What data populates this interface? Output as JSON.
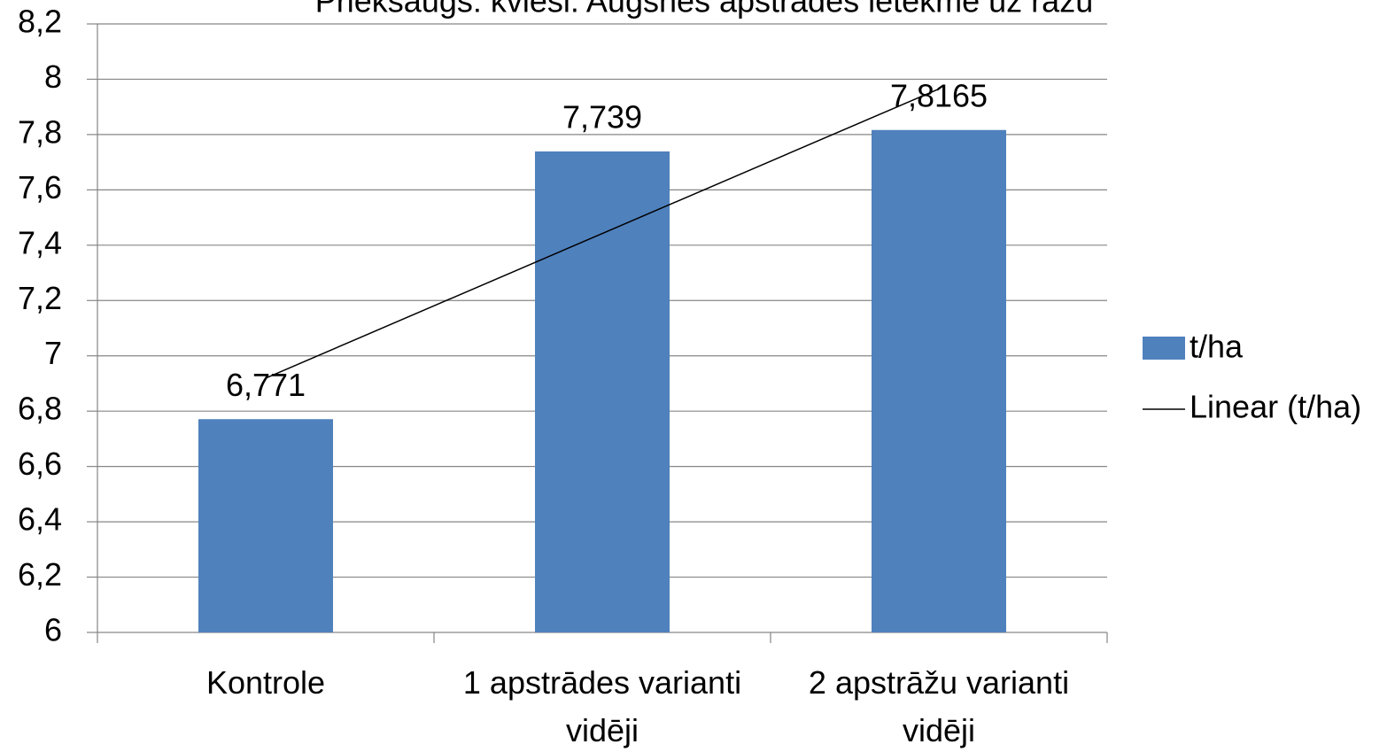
{
  "chart_data": {
    "type": "bar",
    "title": "Priekšaugs: kvieši. Augsnes apstrādes ietekme uz ražu",
    "categories": [
      "Kontrole",
      "1 apstrādes varianti vidēji",
      "2 apstrāžu varianti vidēji"
    ],
    "series": [
      {
        "name": "t/ha",
        "color": "#4f81bd",
        "values": [
          6.771,
          7.739,
          7.8165
        ],
        "value_labels": [
          "6,771",
          "7,739",
          "7,8165"
        ]
      }
    ],
    "trendline": {
      "name": "Linear (t/ha)",
      "type": "linear",
      "color": "#000000"
    },
    "ylim": [
      6,
      8.2
    ],
    "yticks": [
      6,
      {
        "value": 6.2,
        "label": "6,2"
      },
      {
        "value": 6.4,
        "label": "6,4"
      },
      {
        "value": 6.6,
        "label": "6,6"
      },
      {
        "value": 6.8,
        "label": "6,8"
      },
      7,
      {
        "value": 7.2,
        "label": "7,2"
      },
      {
        "value": 7.4,
        "label": "7,4"
      },
      {
        "value": 7.6,
        "label": "7,6"
      },
      {
        "value": 7.8,
        "label": "7,8"
      },
      8,
      {
        "value": 8.2,
        "label": "8,2"
      }
    ],
    "grid": true,
    "legend": "right"
  }
}
